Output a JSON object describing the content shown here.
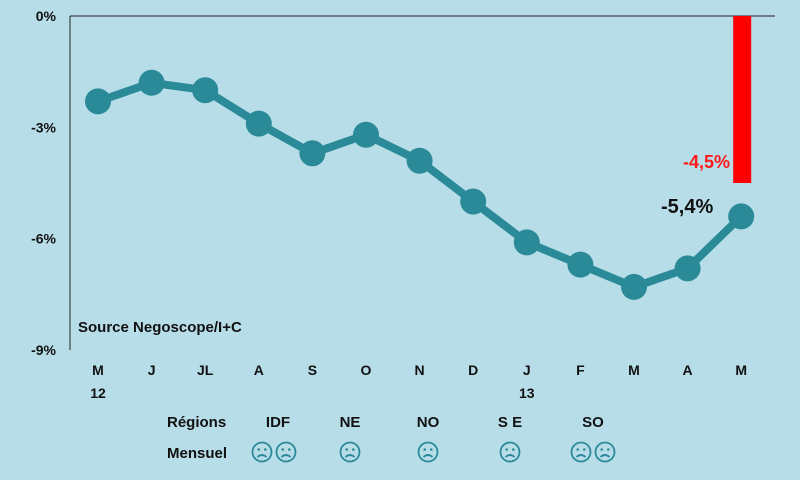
{
  "chart_data": {
    "type": "line",
    "categories": [
      "M",
      "J",
      "JL",
      "A",
      "S",
      "O",
      "N",
      "D",
      "J",
      "F",
      "M",
      "A",
      "M"
    ],
    "category_sublabels": [
      "12",
      "",
      "",
      "",
      "",
      "",
      "",
      "",
      "13",
      "",
      "",
      "",
      ""
    ],
    "series": [
      {
        "values": [
          -2.3,
          -1.8,
          -2.0,
          -2.9,
          -3.7,
          -3.2,
          -3.9,
          -5.0,
          -6.1,
          -6.7,
          -7.3,
          -6.8,
          -5.4
        ],
        "color": "#2a8a98"
      }
    ],
    "bar": {
      "category_index": 12,
      "value": -4.5,
      "color": "#ff0000"
    },
    "yticks": [
      0,
      -3,
      -6,
      -9
    ],
    "ytick_labels": [
      "0%",
      "-3%",
      "-6%",
      "-9%"
    ],
    "ylim": [
      -9,
      0
    ],
    "annotations": {
      "last_point": "-5,4%",
      "bar_value": "-4,5%"
    },
    "source": "Source Negoscope/I+C",
    "grid": false
  },
  "legend_rows": {
    "regions_label": "Régions",
    "mensuel_label": "Mensuel",
    "regions": [
      {
        "code": "IDF",
        "faces": 2
      },
      {
        "code": "NE",
        "faces": 1
      },
      {
        "code": "NO",
        "faces": 1
      },
      {
        "code": "S E",
        "faces": 1
      },
      {
        "code": "SO",
        "faces": 2
      }
    ],
    "face_icon": "sad-face-icon"
  },
  "colors": {
    "background": "#b7dde8",
    "line": "#2a8a98",
    "bar": "#ff0000"
  }
}
